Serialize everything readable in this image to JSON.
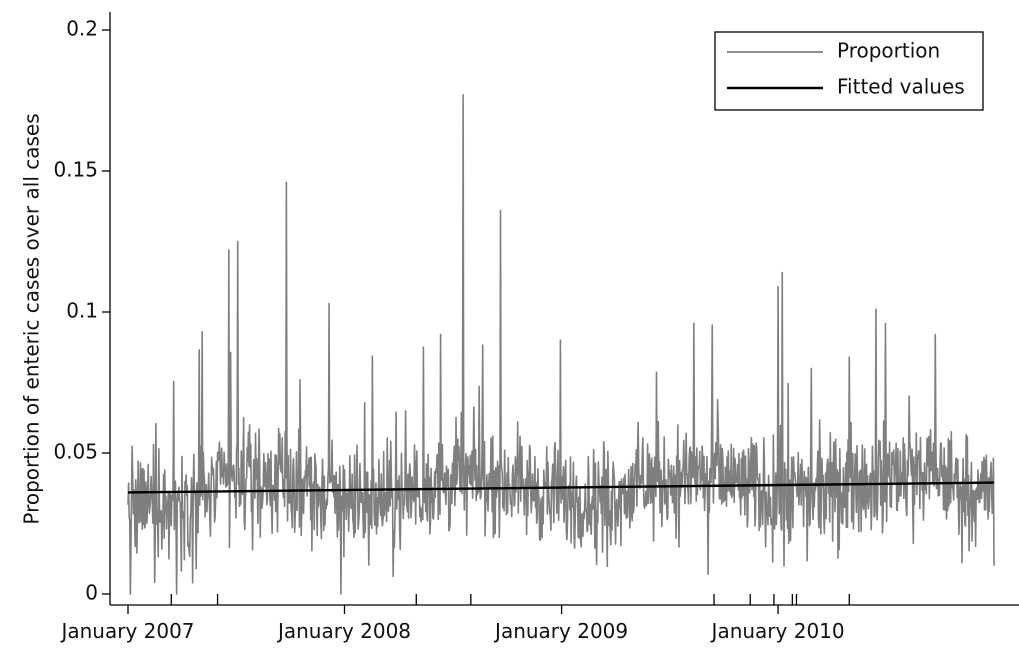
{
  "chart_data": {
    "type": "line",
    "title": "",
    "xlabel": "",
    "ylabel": "Proportion of enteric cases over all cases",
    "xlim": [
      "2007-01-01",
      "2010-12-31"
    ],
    "ylim": [
      0,
      0.2
    ],
    "y_ticks": [
      0,
      0.05,
      0.1,
      0.15,
      0.2
    ],
    "y_tick_labels": [
      "0",
      "0.05",
      "0.1",
      "0.15",
      "0.2"
    ],
    "x_ticks": [
      "2007-01-01",
      "2008-01-01",
      "2009-01-01",
      "2010-01-01"
    ],
    "x_tick_labels": [
      "January 2007",
      "January 2008",
      "January 2009",
      "January 2010"
    ],
    "x_minor_ticks": [
      "2007-03-15",
      "2007-06-01",
      "2008-05-01",
      "2008-08-01",
      "2009-09-15",
      "2009-11-15",
      "2009-12-25",
      "2010-01-25",
      "2010-02-01",
      "2010-05-01"
    ],
    "grid": false,
    "legend": {
      "position": "top-right",
      "entries": [
        "Proportion",
        "Fitted values"
      ]
    },
    "series": [
      {
        "name": "Proportion",
        "color": "#7f7f7f",
        "x_start": "2007-01-01",
        "x_end": "2010-12-31",
        "noisy_daily": true,
        "peaks": [
          {
            "x": "2007-05-06",
            "y": 0.093
          },
          {
            "x": "2007-06-20",
            "y": 0.122
          },
          {
            "x": "2007-07-05",
            "y": 0.125
          },
          {
            "x": "2007-09-25",
            "y": 0.146
          },
          {
            "x": "2007-12-06",
            "y": 0.103
          },
          {
            "x": "2008-07-19",
            "y": 0.177
          },
          {
            "x": "2008-09-20",
            "y": 0.136
          },
          {
            "x": "2008-12-30",
            "y": 0.09
          },
          {
            "x": "2009-08-12",
            "y": 0.096
          },
          {
            "x": "2010-01-01",
            "y": 0.109
          },
          {
            "x": "2010-01-08",
            "y": 0.114
          },
          {
            "x": "2010-05-01",
            "y": 0.084
          },
          {
            "x": "2010-06-15",
            "y": 0.101
          }
        ],
        "troughs": [
          {
            "x": "2007-01-05",
            "y": 0.0
          },
          {
            "x": "2007-03-24",
            "y": 0.0
          },
          {
            "x": "2007-04-20",
            "y": 0.004
          },
          {
            "x": "2007-12-26",
            "y": 0.0
          },
          {
            "x": "2009-09-05",
            "y": 0.007
          },
          {
            "x": "2010-12-31",
            "y": 0.01
          }
        ]
      },
      {
        "name": "Fitted values",
        "color": "#000000",
        "x": [
          "2007-01-01",
          "2010-12-31"
        ],
        "y": [
          0.036,
          0.0395
        ]
      }
    ]
  }
}
